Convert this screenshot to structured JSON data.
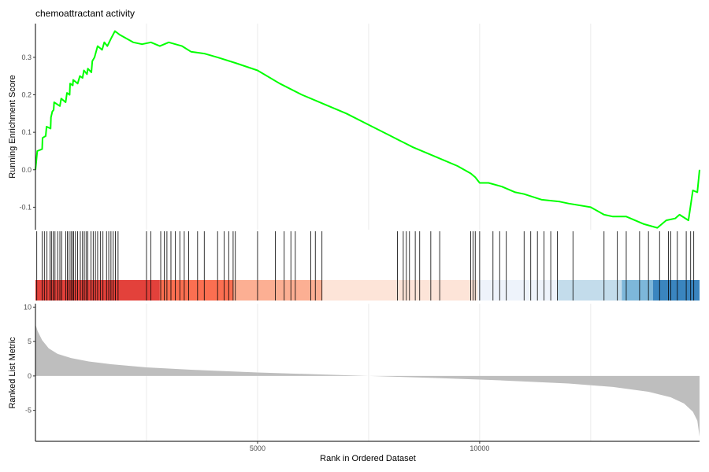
{
  "chart_data": {
    "type": "line",
    "title": "chemoattractant activity",
    "xlabel": "Rank in Ordered Dataset",
    "xlim": [
      0,
      14950
    ],
    "x_ticks": [
      5000,
      10000
    ],
    "grid": true,
    "panels": {
      "enrichment": {
        "ylabel": "Running Enrichment Score",
        "ylim": [
          -0.16,
          0.39
        ],
        "y_ticks": [
          -0.1,
          0.0,
          0.1,
          0.2,
          0.3
        ],
        "line_color": "#00ff00",
        "points": [
          [
            0,
            0.0
          ],
          [
            40,
            0.05
          ],
          [
            150,
            0.055
          ],
          [
            160,
            0.085
          ],
          [
            230,
            0.09
          ],
          [
            250,
            0.115
          ],
          [
            340,
            0.11
          ],
          [
            350,
            0.14
          ],
          [
            380,
            0.155
          ],
          [
            410,
            0.16
          ],
          [
            420,
            0.18
          ],
          [
            550,
            0.17
          ],
          [
            580,
            0.19
          ],
          [
            680,
            0.18
          ],
          [
            710,
            0.205
          ],
          [
            770,
            0.2
          ],
          [
            780,
            0.23
          ],
          [
            840,
            0.225
          ],
          [
            850,
            0.24
          ],
          [
            950,
            0.23
          ],
          [
            1000,
            0.25
          ],
          [
            1060,
            0.245
          ],
          [
            1090,
            0.265
          ],
          [
            1160,
            0.255
          ],
          [
            1180,
            0.27
          ],
          [
            1260,
            0.26
          ],
          [
            1280,
            0.29
          ],
          [
            1330,
            0.3
          ],
          [
            1400,
            0.33
          ],
          [
            1500,
            0.32
          ],
          [
            1550,
            0.34
          ],
          [
            1620,
            0.33
          ],
          [
            1700,
            0.35
          ],
          [
            1790,
            0.37
          ],
          [
            1900,
            0.36
          ],
          [
            2200,
            0.34
          ],
          [
            2400,
            0.335
          ],
          [
            2600,
            0.34
          ],
          [
            2800,
            0.33
          ],
          [
            3000,
            0.34
          ],
          [
            3300,
            0.33
          ],
          [
            3500,
            0.315
          ],
          [
            3800,
            0.31
          ],
          [
            4100,
            0.3
          ],
          [
            4500,
            0.285
          ],
          [
            5000,
            0.265
          ],
          [
            5500,
            0.23
          ],
          [
            6000,
            0.2
          ],
          [
            6500,
            0.175
          ],
          [
            7000,
            0.15
          ],
          [
            7500,
            0.12
          ],
          [
            8000,
            0.09
          ],
          [
            8500,
            0.06
          ],
          [
            9000,
            0.035
          ],
          [
            9500,
            0.01
          ],
          [
            9800,
            -0.01
          ],
          [
            9900,
            -0.02
          ],
          [
            10000,
            -0.035
          ],
          [
            10200,
            -0.035
          ],
          [
            10500,
            -0.045
          ],
          [
            10800,
            -0.06
          ],
          [
            11000,
            -0.065
          ],
          [
            11400,
            -0.08
          ],
          [
            11800,
            -0.085
          ],
          [
            12000,
            -0.09
          ],
          [
            12500,
            -0.1
          ],
          [
            12800,
            -0.12
          ],
          [
            13000,
            -0.125
          ],
          [
            13300,
            -0.125
          ],
          [
            13700,
            -0.145
          ],
          [
            14000,
            -0.155
          ],
          [
            14200,
            -0.135
          ],
          [
            14400,
            -0.13
          ],
          [
            14500,
            -0.12
          ],
          [
            14700,
            -0.135
          ],
          [
            14800,
            -0.055
          ],
          [
            14900,
            -0.06
          ],
          [
            14950,
            0.0
          ]
        ]
      },
      "hits": {
        "positions": [
          30,
          150,
          200,
          260,
          330,
          360,
          400,
          440,
          500,
          550,
          590,
          680,
          720,
          760,
          800,
          830,
          860,
          900,
          950,
          1010,
          1060,
          1100,
          1140,
          1180,
          1250,
          1300,
          1350,
          1400,
          1460,
          1520,
          1600,
          1650,
          1700,
          1750,
          1800,
          1860,
          2500,
          2600,
          2820,
          2900,
          2960,
          3050,
          3150,
          3250,
          3350,
          3450,
          3650,
          3800,
          4100,
          4250,
          4350,
          4450,
          4500,
          5000,
          5400,
          5600,
          5750,
          5850,
          6200,
          6300,
          6450,
          8150,
          8280,
          8350,
          8420,
          8550,
          8650,
          8900,
          9100,
          9800,
          9850,
          9900,
          10000,
          10300,
          10450,
          10600,
          11000,
          11150,
          11300,
          11450,
          11600,
          11750,
          12100,
          12800,
          13100,
          13300,
          13600,
          13800,
          14050,
          14250,
          14300,
          14450,
          14650,
          14750,
          14820
        ],
        "color_bands": [
          {
            "from": 0,
            "to": 2800,
            "color": "#e3413b"
          },
          {
            "from": 2800,
            "to": 4450,
            "color": "#fb6f51"
          },
          {
            "from": 4450,
            "to": 6450,
            "color": "#fcaf93"
          },
          {
            "from": 6450,
            "to": 9950,
            "color": "#fde4d8"
          },
          {
            "from": 9950,
            "to": 11750,
            "color": "#eef3fb"
          },
          {
            "from": 11750,
            "to": 13200,
            "color": "#c3dceb"
          },
          {
            "from": 13200,
            "to": 13900,
            "color": "#7db7da"
          },
          {
            "from": 13900,
            "to": 14950,
            "color": "#3a85bf"
          }
        ]
      },
      "ranked_metric": {
        "ylabel": "Ranked List Metric",
        "ylim": [
          -9.5,
          10.5
        ],
        "y_ticks": [
          -5,
          0,
          5,
          10
        ],
        "fill_color": "#bebebe",
        "points": [
          [
            0,
            7.5
          ],
          [
            50,
            6.5
          ],
          [
            150,
            5.2
          ],
          [
            300,
            4.0
          ],
          [
            500,
            3.2
          ],
          [
            800,
            2.6
          ],
          [
            1200,
            2.1
          ],
          [
            1700,
            1.7
          ],
          [
            2500,
            1.25
          ],
          [
            3500,
            0.9
          ],
          [
            5000,
            0.5
          ],
          [
            6500,
            0.2
          ],
          [
            7500,
            0.0
          ],
          [
            9000,
            -0.3
          ],
          [
            10500,
            -0.65
          ],
          [
            12000,
            -1.1
          ],
          [
            13000,
            -1.6
          ],
          [
            13800,
            -2.3
          ],
          [
            14300,
            -3.1
          ],
          [
            14600,
            -4.0
          ],
          [
            14800,
            -5.2
          ],
          [
            14900,
            -6.5
          ],
          [
            14950,
            -8.8
          ]
        ]
      }
    }
  }
}
